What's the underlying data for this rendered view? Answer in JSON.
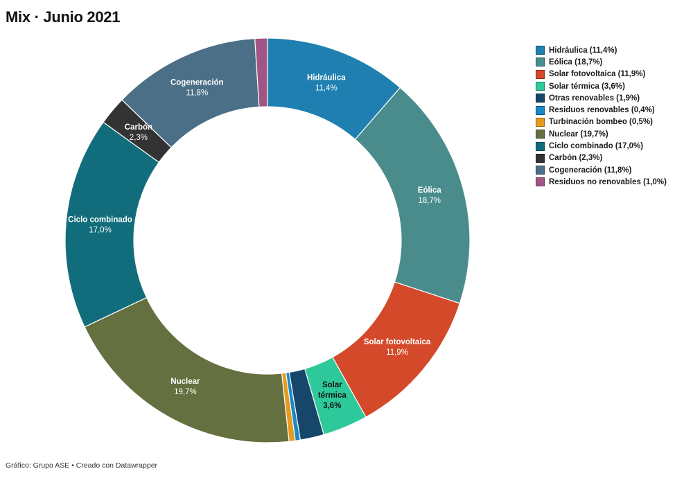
{
  "title": "Mix · Junio 2021",
  "footer": "Gráfico: Grupo ASE • Creado con Datawrapper",
  "chart_data": {
    "type": "pie",
    "title": "Mix · Junio 2021",
    "legend_position": "right",
    "slices": [
      {
        "name": "Hidráulica",
        "value": 11.4,
        "value_label": "11,4%",
        "legend": "Hidráulica (11,4%)",
        "color": "#1f7fb0",
        "slice_label": [
          "Hidráulica"
        ],
        "label_color": "#ffffff"
      },
      {
        "name": "Eólica",
        "value": 18.7,
        "value_label": "18,7%",
        "legend": "Eólica (18,7%)",
        "color": "#4a8c8c",
        "slice_label": [
          "Eólica"
        ],
        "label_color": "#ffffff"
      },
      {
        "name": "Solar fotovoltaica",
        "value": 11.9,
        "value_label": "11,9%",
        "legend": "Solar fotovoltaica (11,9%)",
        "color": "#d4492a",
        "slice_label": [
          "Solar fotovoltaica"
        ],
        "label_color": "#ffffff"
      },
      {
        "name": "Solar térmica",
        "value": 3.6,
        "value_label": "3,6%",
        "legend": "Solar térmica (3,6%)",
        "color": "#2ec99a",
        "slice_label": [
          "Solar",
          "térmica"
        ],
        "label_color": "#111111"
      },
      {
        "name": "Otras renovables",
        "value": 1.9,
        "value_label": "1,9%",
        "legend": "Otras renovables (1,9%)",
        "color": "#16466a",
        "slice_label": [],
        "label_color": "#ffffff"
      },
      {
        "name": "Residuos renovables",
        "value": 0.4,
        "value_label": "0,4%",
        "legend": "Residuos renovables (0,4%)",
        "color": "#1c88c4",
        "slice_label": [],
        "label_color": "#ffffff"
      },
      {
        "name": "Turbinación bombeo",
        "value": 0.5,
        "value_label": "0,5%",
        "legend": "Turbinación bombeo (0,5%)",
        "color": "#e69b20",
        "slice_label": [],
        "label_color": "#ffffff"
      },
      {
        "name": "Nuclear",
        "value": 19.7,
        "value_label": "19,7%",
        "legend": "Nuclear (19,7%)",
        "color": "#64703f",
        "slice_label": [
          "Nuclear"
        ],
        "label_color": "#ffffff"
      },
      {
        "name": "Ciclo combinado",
        "value": 17.0,
        "value_label": "17,0%",
        "legend": "Ciclo combinado (17,0%)",
        "color": "#116d7b",
        "slice_label": [
          "Ciclo combinado"
        ],
        "label_color": "#ffffff"
      },
      {
        "name": "Carbón",
        "value": 2.3,
        "value_label": "2,3%",
        "legend": "Carbón (2,3%)",
        "color": "#333333",
        "slice_label": [
          "Carbón"
        ],
        "label_color": "#ffffff"
      },
      {
        "name": "Cogeneración",
        "value": 11.8,
        "value_label": "11,8%",
        "legend": "Cogeneración (11,8%)",
        "color": "#4a6f87",
        "slice_label": [
          "Cogeneración"
        ],
        "label_color": "#ffffff"
      },
      {
        "name": "Residuos no renovables",
        "value": 1.0,
        "value_label": "1,0%",
        "legend": "Residuos no renovables (1,0%)",
        "color": "#a05684",
        "slice_label": [],
        "label_color": "#ffffff"
      }
    ]
  }
}
